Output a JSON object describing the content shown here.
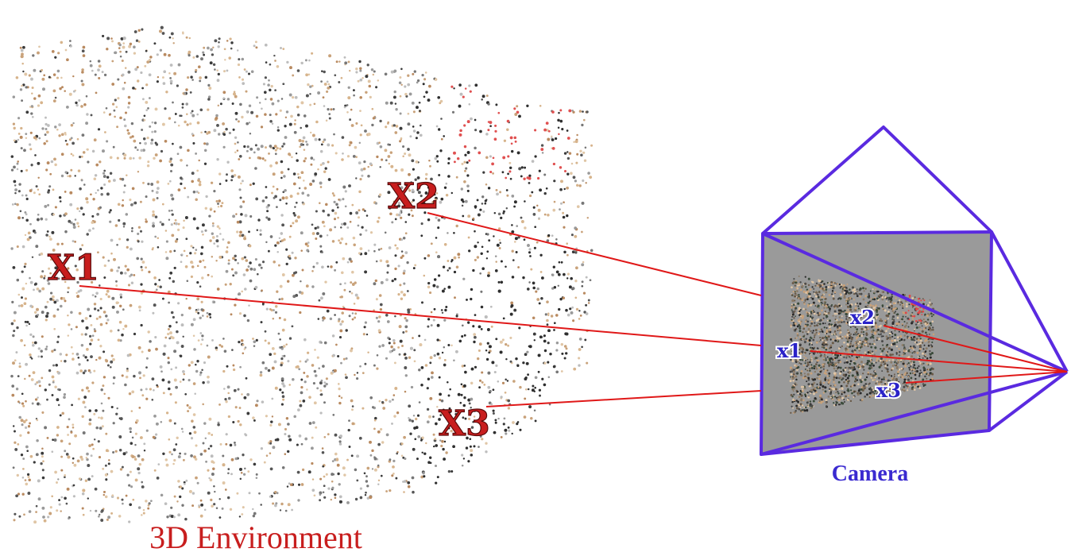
{
  "captions": {
    "environment": "3D Environment",
    "camera": "Camera"
  },
  "points_3d": [
    {
      "id": "X1",
      "label": "X1"
    },
    {
      "id": "X2",
      "label": "X2"
    },
    {
      "id": "X3",
      "label": "X3"
    }
  ],
  "points_2d": [
    {
      "id": "x1",
      "label": "x1"
    },
    {
      "id": "x2",
      "label": "x2"
    },
    {
      "id": "x3",
      "label": "x3"
    }
  ],
  "colors": {
    "ray": "#e01818",
    "frustum": "#5a2ae0",
    "image_plane": "#9a9a9a",
    "label_3d": "#c81e1e",
    "label_2d": "#2a22c8"
  }
}
